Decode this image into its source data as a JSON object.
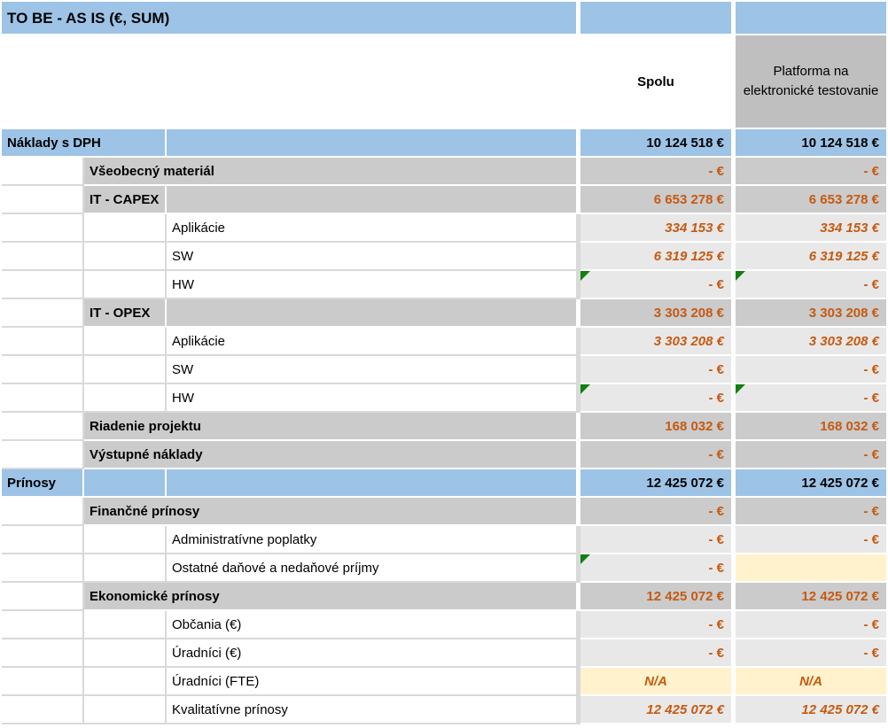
{
  "title": "TO BE - AS IS (€, SUM)",
  "columns": {
    "spolu": "Spolu",
    "platforma": "Platforma na elektronické testovanie"
  },
  "colors": {
    "section_bg": "#9DC3E6",
    "header_gray": "#BFBFBF",
    "category_bg": "#CBCBCB",
    "leaf_value_bg": "#E9E8E8",
    "highlight_bg": "#FFF2CC",
    "value_text_orange": "#C55A11",
    "flag_green": "#118011"
  },
  "rows": [
    {
      "type": "section",
      "wide": true,
      "label": "Náklady s DPH",
      "values": [
        "10 124 518 €",
        "10 124 518 €"
      ],
      "flags": [
        false,
        false
      ],
      "italic": false
    },
    {
      "type": "category",
      "split": false,
      "label": "Všeobecný materiál",
      "values": [
        "- €",
        "- €"
      ],
      "flags": [
        false,
        false
      ],
      "italic": false
    },
    {
      "type": "category",
      "split": true,
      "label": "IT - CAPEX",
      "values": [
        "6 653 278 €",
        "6 653 278 €"
      ],
      "flags": [
        false,
        false
      ],
      "italic": false
    },
    {
      "type": "leaf",
      "label": "Aplikácie",
      "values": [
        "334 153 €",
        "334 153 €"
      ],
      "flags": [
        false,
        false
      ],
      "italic": true
    },
    {
      "type": "leaf",
      "label": "SW",
      "values": [
        "6 319 125 €",
        "6 319 125 €"
      ],
      "flags": [
        false,
        false
      ],
      "italic": true
    },
    {
      "type": "leaf",
      "label": "HW",
      "values": [
        "- €",
        "- €"
      ],
      "flags": [
        true,
        true
      ],
      "italic": false
    },
    {
      "type": "category",
      "split": true,
      "label": "IT - OPEX",
      "values": [
        "3 303 208 €",
        "3 303 208 €"
      ],
      "flags": [
        false,
        false
      ],
      "italic": false
    },
    {
      "type": "leaf",
      "label": "Aplikácie",
      "values": [
        "3 303 208 €",
        "3 303 208 €"
      ],
      "flags": [
        false,
        false
      ],
      "italic": true
    },
    {
      "type": "leaf",
      "label": "SW",
      "values": [
        "- €",
        "- €"
      ],
      "flags": [
        false,
        false
      ],
      "italic": false
    },
    {
      "type": "leaf",
      "label": "HW",
      "values": [
        "- €",
        "- €"
      ],
      "flags": [
        true,
        true
      ],
      "italic": false
    },
    {
      "type": "category",
      "split": false,
      "label": "Riadenie projektu",
      "values": [
        "168 032 €",
        "168 032 €"
      ],
      "flags": [
        false,
        false
      ],
      "italic": false
    },
    {
      "type": "category",
      "split": false,
      "label": "Výstupné náklady",
      "values": [
        "- €",
        "- €"
      ],
      "flags": [
        false,
        false
      ],
      "italic": false
    },
    {
      "type": "section",
      "wide": false,
      "label": "Prínosy",
      "values": [
        "12 425 072 €",
        "12 425 072 €"
      ],
      "flags": [
        false,
        false
      ],
      "italic": false
    },
    {
      "type": "category",
      "split": false,
      "label": "Finančné prínosy",
      "values": [
        "- €",
        "- €"
      ],
      "flags": [
        false,
        false
      ],
      "italic": false
    },
    {
      "type": "leaf",
      "label": "Administratívne poplatky",
      "values": [
        "- €",
        "- €"
      ],
      "flags": [
        false,
        false
      ],
      "italic": false
    },
    {
      "type": "leaf",
      "label": "Ostatné daňové a nedaňové príjmy",
      "values": [
        "- €",
        ""
      ],
      "flags": [
        true,
        false
      ],
      "italic": false,
      "cell_bg": [
        null,
        "yellow"
      ]
    },
    {
      "type": "category",
      "split": false,
      "label": "Ekonomické prínosy",
      "values": [
        "12 425 072 €",
        "12 425 072 €"
      ],
      "flags": [
        false,
        false
      ],
      "italic": false
    },
    {
      "type": "leaf",
      "label": "Občania (€)",
      "values": [
        "- €",
        "- €"
      ],
      "flags": [
        false,
        false
      ],
      "italic": false
    },
    {
      "type": "leaf",
      "label": "Úradníci (€)",
      "values": [
        "- €",
        "- €"
      ],
      "flags": [
        false,
        false
      ],
      "italic": false
    },
    {
      "type": "leaf",
      "label": "Úradníci (FTE)",
      "values": [
        "N/A",
        "N/A"
      ],
      "flags": [
        false,
        false
      ],
      "italic": true,
      "center": true,
      "cell_bg": [
        "yellow",
        "yellow"
      ]
    },
    {
      "type": "leaf",
      "label": "Kvalitatívne prínosy",
      "values": [
        "12 425 072 €",
        "12 425 072 €"
      ],
      "flags": [
        false,
        false
      ],
      "italic": true
    }
  ]
}
